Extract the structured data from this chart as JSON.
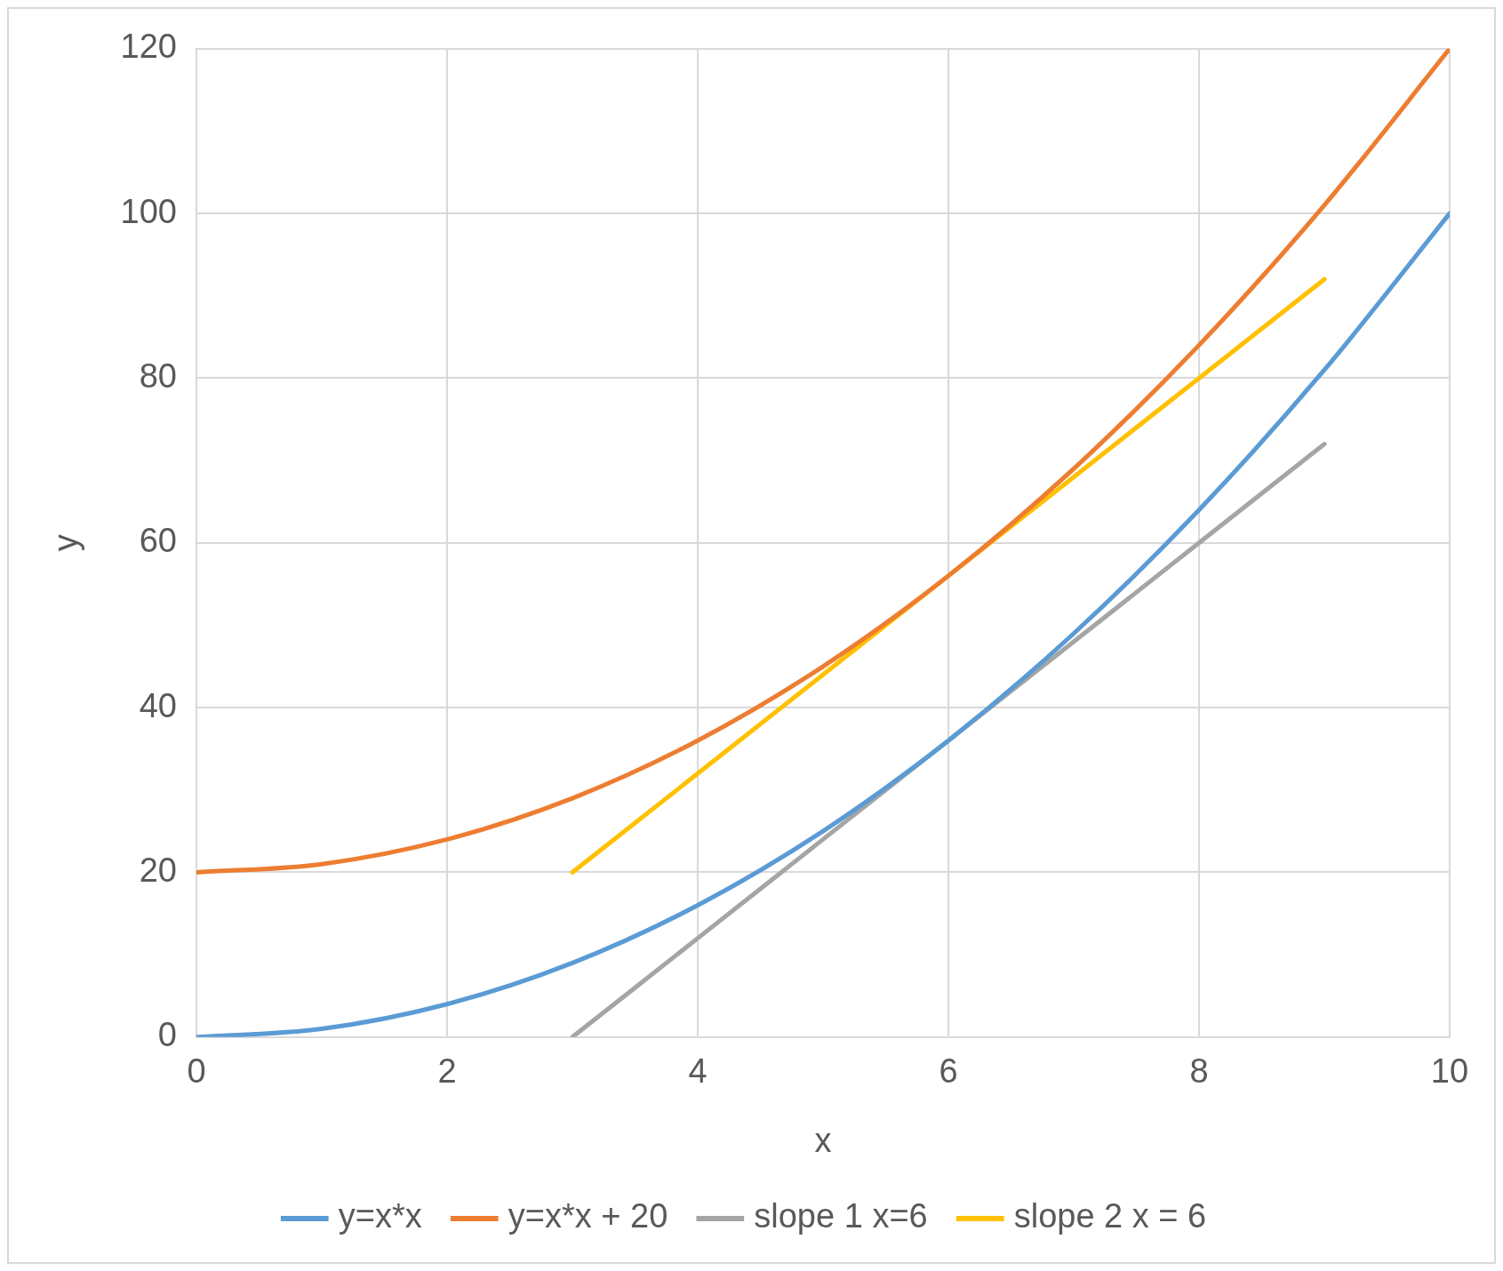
{
  "chart_data": {
    "type": "line",
    "xlabel": "x",
    "ylabel": "y",
    "xlim": [
      0,
      10
    ],
    "xticks": [
      0,
      2,
      4,
      6,
      8,
      10
    ],
    "ylim": [
      0,
      120
    ],
    "yticks": [
      0,
      20,
      40,
      60,
      80,
      100,
      120
    ],
    "grid": true,
    "legend": "bottom",
    "marker": "none",
    "line_style": "solid",
    "series": [
      {
        "name": "y=x*x",
        "color": "#5b9bd5",
        "x": [
          0,
          1,
          2,
          3,
          4,
          5,
          6,
          7,
          8,
          9,
          10
        ],
        "values": [
          0,
          1,
          4,
          9,
          16,
          25,
          36,
          49,
          64,
          81,
          100
        ]
      },
      {
        "name": "y=x*x + 20",
        "color": "#ed7d31",
        "x": [
          0,
          1,
          2,
          3,
          4,
          5,
          6,
          7,
          8,
          9,
          10
        ],
        "values": [
          20,
          21,
          24,
          29,
          36,
          45,
          56,
          69,
          84,
          101,
          120
        ]
      },
      {
        "name": "slope 1 x=6",
        "color": "#a5a5a5",
        "x": [
          3,
          4,
          5,
          6,
          7,
          8,
          9
        ],
        "values": [
          0,
          12,
          24,
          36,
          48,
          60,
          72
        ]
      },
      {
        "name": "slope 2 x = 6",
        "color": "#ffc000",
        "x": [
          3,
          4,
          5,
          6,
          7,
          8,
          9
        ],
        "values": [
          20,
          32,
          44,
          56,
          68,
          80,
          92
        ]
      }
    ]
  }
}
